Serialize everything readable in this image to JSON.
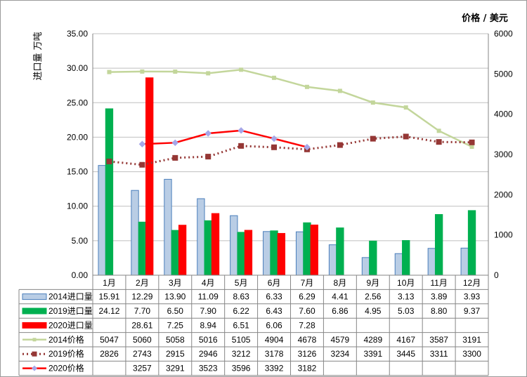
{
  "chart_data": {
    "type": "bar",
    "y_label_left": "进口量 万吨",
    "y_label_right": "价格 / 美元",
    "categories": [
      "1月",
      "2月",
      "3月",
      "4月",
      "5月",
      "6月",
      "7月",
      "8月",
      "9月",
      "10月",
      "11月",
      "12月"
    ],
    "ylim_left": [
      0,
      35
    ],
    "ylim_right": [
      0,
      6000
    ],
    "yticks_left": [
      "0.00",
      "5.00",
      "10.00",
      "15.00",
      "20.00",
      "25.00",
      "30.00",
      "35.00"
    ],
    "yticks_right": [
      "0",
      "1000",
      "2000",
      "3000",
      "4000",
      "5000",
      "6000"
    ],
    "grid": true,
    "legend": "table-below",
    "series": [
      {
        "name": "2014进口量",
        "kind": "bar",
        "axis": "left",
        "color": "#b9cde5",
        "stroke": "#4a7ebb",
        "values": [
          15.91,
          12.29,
          13.9,
          11.09,
          8.63,
          6.33,
          6.29,
          4.41,
          2.56,
          3.13,
          3.89,
          3.93
        ],
        "labels": [
          "15.91",
          "12.29",
          "13.90",
          "11.09",
          "8.63",
          "6.33",
          "6.29",
          "4.41",
          "2.56",
          "3.13",
          "3.89",
          "3.93"
        ]
      },
      {
        "name": "2019进口量",
        "kind": "bar",
        "axis": "left",
        "color": "#00b050",
        "stroke": "#00b050",
        "values": [
          24.12,
          7.7,
          6.5,
          7.9,
          6.22,
          6.43,
          7.6,
          6.86,
          4.95,
          5.03,
          8.8,
          9.37
        ],
        "labels": [
          "24.12",
          "7.70",
          "6.50",
          "7.90",
          "6.22",
          "6.43",
          "7.60",
          "6.86",
          "4.95",
          "5.03",
          "8.80",
          "9.37"
        ]
      },
      {
        "name": "2020进口量",
        "kind": "bar",
        "axis": "left",
        "color": "#ff0000",
        "stroke": "#ff0000",
        "values": [
          null,
          28.61,
          7.25,
          8.94,
          6.51,
          6.06,
          7.28,
          null,
          null,
          null,
          null,
          null
        ],
        "labels": [
          "",
          "28.61",
          "7.25",
          "8.94",
          "6.51",
          "6.06",
          "7.28",
          "",
          "",
          "",
          "",
          ""
        ]
      },
      {
        "name": "2014价格",
        "kind": "line",
        "axis": "right",
        "color": "#c3d69b",
        "marker": "square",
        "values": [
          5047,
          5060,
          5058,
          5016,
          5105,
          4904,
          4678,
          4579,
          4289,
          4167,
          3587,
          3191
        ],
        "labels": [
          "5047",
          "5060",
          "5058",
          "5016",
          "5105",
          "4904",
          "4678",
          "4579",
          "4289",
          "4167",
          "3587",
          "3191"
        ]
      },
      {
        "name": "2019价格",
        "kind": "line",
        "axis": "right",
        "color": "#953735",
        "marker": "square",
        "dash": true,
        "values": [
          2826,
          2743,
          2915,
          2946,
          3212,
          3178,
          3126,
          3234,
          3391,
          3445,
          3311,
          3300
        ],
        "labels": [
          "2826",
          "2743",
          "2915",
          "2946",
          "3212",
          "3178",
          "3126",
          "3234",
          "3391",
          "3445",
          "3311",
          "3300"
        ]
      },
      {
        "name": "2020价格",
        "kind": "line",
        "axis": "right",
        "color": "#ff0000",
        "marker": "diamond",
        "marker_color": "#a6a6e8",
        "values": [
          null,
          3257,
          3291,
          3523,
          3596,
          3392,
          3182,
          null,
          null,
          null,
          null,
          null
        ],
        "labels": [
          "",
          "3257",
          "3291",
          "3523",
          "3596",
          "3392",
          "3182",
          "",
          "",
          "",
          "",
          ""
        ]
      }
    ]
  }
}
